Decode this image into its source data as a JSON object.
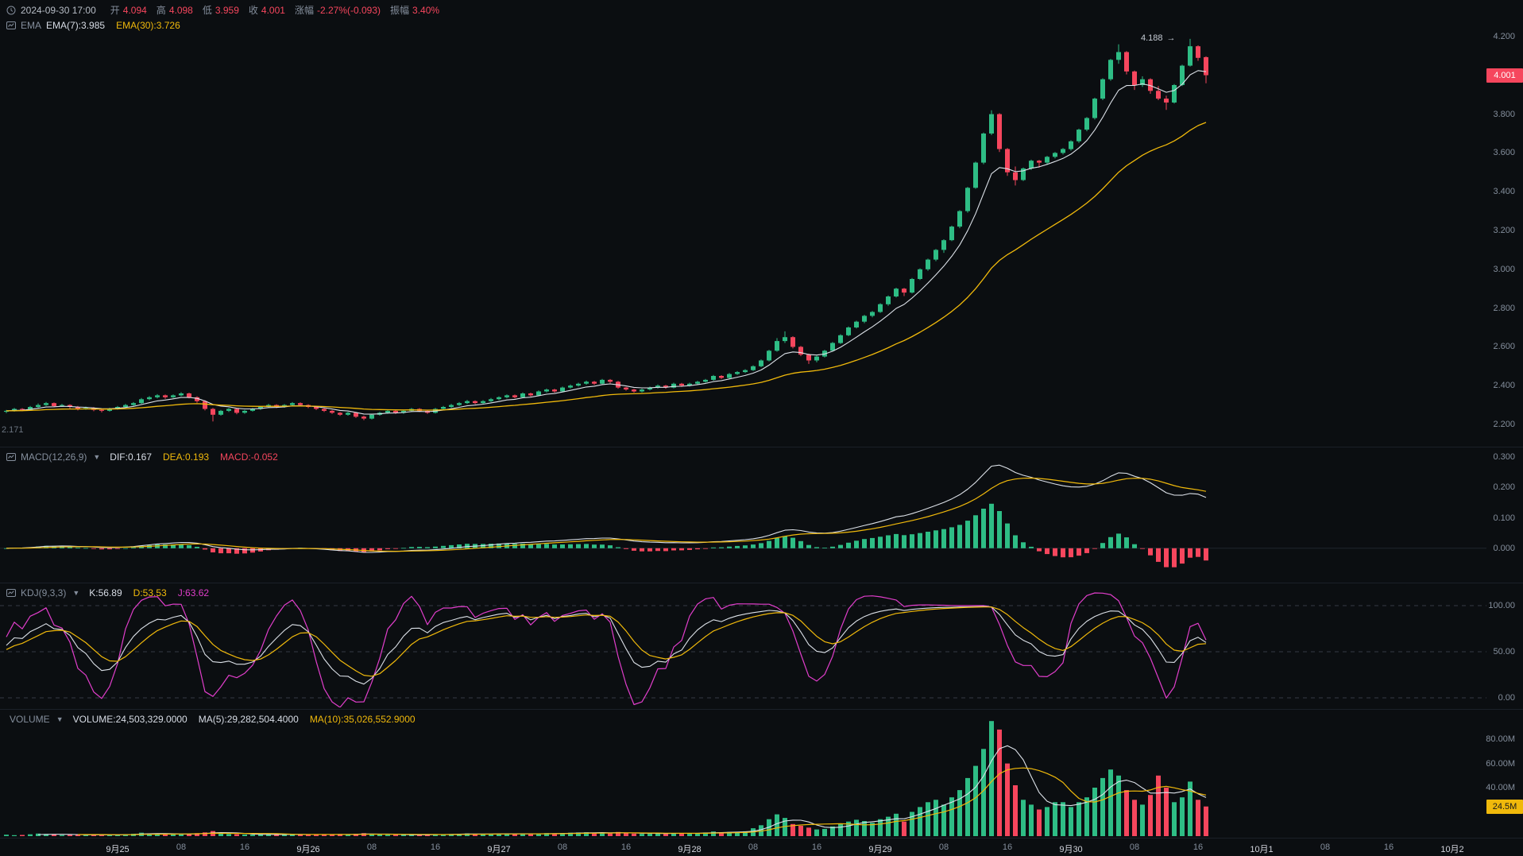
{
  "colors": {
    "up": "#2ebd85",
    "down": "#f6465d",
    "yellow": "#f0b90b",
    "white_line": "#dce1e8",
    "magenta": "#e13ecb",
    "axis_text": "#848e9c",
    "bg": "#0b0e11"
  },
  "header": {
    "datetime": "2024-09-30 17:00",
    "fields": [
      {
        "label": "开",
        "value": "4.094"
      },
      {
        "label": "高",
        "value": "4.098"
      },
      {
        "label": "低",
        "value": "3.959"
      },
      {
        "label": "收",
        "value": "4.001"
      },
      {
        "label": "涨幅",
        "value": "-2.27%(-0.093)"
      },
      {
        "label": "振幅",
        "value": "3.40%"
      }
    ],
    "ema": {
      "name": "EMA",
      "items": [
        {
          "text": "EMA(7):3.985",
          "color": "white"
        },
        {
          "text": "EMA(30):3.726",
          "color": "yellow"
        }
      ]
    }
  },
  "panels": {
    "macd": {
      "title": "MACD(12,26,9)",
      "values": [
        {
          "text": "DIF:0.167",
          "color": "white"
        },
        {
          "text": "DEA:0.193",
          "color": "yellow"
        },
        {
          "text": "MACD:-0.052",
          "color": "red"
        }
      ]
    },
    "kdj": {
      "title": "KDJ(9,3,3)",
      "values": [
        {
          "text": "K:56.89",
          "color": "white"
        },
        {
          "text": "D:53.53",
          "color": "yellow"
        },
        {
          "text": "J:63.62",
          "color": "magenta"
        }
      ]
    },
    "volume": {
      "title": "VOLUME",
      "values": [
        {
          "text": "VOLUME:24,503,329.0000",
          "color": "white"
        },
        {
          "text": "MA(5):29,282,504.4000",
          "color": "white"
        },
        {
          "text": "MA(10):35,026,552.9000",
          "color": "yellow"
        }
      ],
      "badge": "24.5M"
    }
  },
  "chart_data": {
    "type": "candlestick",
    "timeframe_labels_note": "1-hour candles, 2024-09-24 10:00 through 2024-09-30 17:00",
    "price_axis": {
      "ticks": [
        {
          "v": 4.2,
          "label": "4.200"
        },
        {
          "v": 4.0,
          "label": "4.000"
        },
        {
          "v": 3.8,
          "label": "3.800"
        },
        {
          "v": 3.6,
          "label": "3.600"
        },
        {
          "v": 3.4,
          "label": "3.400"
        },
        {
          "v": 3.2,
          "label": "3.200"
        },
        {
          "v": 3.0,
          "label": "3.000"
        },
        {
          "v": 2.8,
          "label": "2.800"
        },
        {
          "v": 2.6,
          "label": "2.600"
        },
        {
          "v": 2.4,
          "label": "2.400"
        },
        {
          "v": 2.2,
          "label": "2.200"
        }
      ],
      "ylim": [
        2.2,
        4.2
      ],
      "last_price": {
        "v": 4.001,
        "label": "4.001"
      },
      "high_annotation": {
        "v": 4.188,
        "label": "4.188",
        "arrow": "→",
        "idx": 149
      },
      "left_label": "2.171"
    },
    "macd_axis": [
      {
        "v": 0.3,
        "label": "0.300"
      },
      {
        "v": 0.2,
        "label": "0.200"
      },
      {
        "v": 0.1,
        "label": "0.100"
      },
      {
        "v": 0.0,
        "label": "0.000"
      }
    ],
    "kdj_axis": [
      {
        "v": 100,
        "label": "100.00"
      },
      {
        "v": 50,
        "label": "50.00"
      },
      {
        "v": 0,
        "label": "0.00"
      }
    ],
    "volume_axis": [
      {
        "v": 80,
        "label": "80.00M"
      },
      {
        "v": 60,
        "label": "60.00M"
      },
      {
        "v": 40,
        "label": "40.00M"
      }
    ],
    "volume_badge": {
      "v": 24.5,
      "label": "24.5M"
    },
    "indicators": {
      "ema": [
        7,
        30
      ],
      "macd": [
        12,
        26,
        9
      ],
      "kdj": [
        9,
        3,
        3
      ],
      "volume_ma": [
        5,
        10
      ]
    },
    "time_axis": [
      {
        "t": "9月25",
        "i": 14,
        "d": true
      },
      {
        "t": "08",
        "i": 22,
        "d": false
      },
      {
        "t": "16",
        "i": 30,
        "d": false
      },
      {
        "t": "9月26",
        "i": 38,
        "d": true
      },
      {
        "t": "08",
        "i": 46,
        "d": false
      },
      {
        "t": "16",
        "i": 54,
        "d": false
      },
      {
        "t": "9月27",
        "i": 62,
        "d": true
      },
      {
        "t": "08",
        "i": 70,
        "d": false
      },
      {
        "t": "16",
        "i": 78,
        "d": false
      },
      {
        "t": "9月28",
        "i": 86,
        "d": true
      },
      {
        "t": "08",
        "i": 94,
        "d": false
      },
      {
        "t": "16",
        "i": 102,
        "d": false
      },
      {
        "t": "9月29",
        "i": 110,
        "d": true
      },
      {
        "t": "08",
        "i": 118,
        "d": false
      },
      {
        "t": "16",
        "i": 126,
        "d": false
      },
      {
        "t": "9月30",
        "i": 134,
        "d": true
      },
      {
        "t": "08",
        "i": 142,
        "d": false
      },
      {
        "t": "16",
        "i": 150,
        "d": false
      },
      {
        "t": "10月1",
        "i": 158,
        "d": true
      },
      {
        "t": "08",
        "i": 166,
        "d": false
      },
      {
        "t": "16",
        "i": 174,
        "d": false
      },
      {
        "t": "10月2",
        "i": 182,
        "d": true
      }
    ],
    "candles": [
      [
        2.265,
        2.275,
        2.258,
        2.27
      ],
      [
        2.27,
        2.285,
        2.266,
        2.28
      ],
      [
        2.28,
        2.284,
        2.268,
        2.275
      ],
      [
        2.275,
        2.295,
        2.272,
        2.29
      ],
      [
        2.29,
        2.308,
        2.286,
        2.3
      ],
      [
        2.3,
        2.316,
        2.295,
        2.31
      ],
      [
        2.31,
        2.313,
        2.288,
        2.295
      ],
      [
        2.295,
        2.306,
        2.29,
        2.3
      ],
      [
        2.3,
        2.304,
        2.282,
        2.29
      ],
      [
        2.29,
        2.295,
        2.272,
        2.28
      ],
      [
        2.28,
        2.292,
        2.276,
        2.285
      ],
      [
        2.285,
        2.289,
        2.268,
        2.275
      ],
      [
        2.275,
        2.28,
        2.262,
        2.27
      ],
      [
        2.27,
        2.286,
        2.266,
        2.28
      ],
      [
        2.28,
        2.295,
        2.276,
        2.29
      ],
      [
        2.29,
        2.306,
        2.286,
        2.3
      ],
      [
        2.3,
        2.315,
        2.295,
        2.31
      ],
      [
        2.31,
        2.336,
        2.306,
        2.33
      ],
      [
        2.33,
        2.346,
        2.325,
        2.34
      ],
      [
        2.34,
        2.356,
        2.334,
        2.35
      ],
      [
        2.35,
        2.354,
        2.332,
        2.34
      ],
      [
        2.34,
        2.355,
        2.336,
        2.35
      ],
      [
        2.35,
        2.366,
        2.345,
        2.36
      ],
      [
        2.36,
        2.364,
        2.334,
        2.34
      ],
      [
        2.34,
        2.345,
        2.312,
        2.32
      ],
      [
        2.32,
        2.325,
        2.272,
        2.28
      ],
      [
        2.28,
        2.285,
        2.215,
        2.25
      ],
      [
        2.25,
        2.275,
        2.245,
        2.27
      ],
      [
        2.27,
        2.285,
        2.264,
        2.28
      ],
      [
        2.28,
        2.284,
        2.252,
        2.26
      ],
      [
        2.26,
        2.275,
        2.255,
        2.27
      ],
      [
        2.27,
        2.285,
        2.266,
        2.28
      ],
      [
        2.28,
        2.295,
        2.275,
        2.29
      ],
      [
        2.29,
        2.306,
        2.285,
        2.3
      ],
      [
        2.3,
        2.304,
        2.284,
        2.29
      ],
      [
        2.29,
        2.305,
        2.286,
        2.3
      ],
      [
        2.3,
        2.315,
        2.295,
        2.31
      ],
      [
        2.31,
        2.314,
        2.294,
        2.3
      ],
      [
        2.3,
        2.304,
        2.284,
        2.29
      ],
      [
        2.29,
        2.294,
        2.274,
        2.28
      ],
      [
        2.28,
        2.284,
        2.264,
        2.27
      ],
      [
        2.27,
        2.274,
        2.254,
        2.26
      ],
      [
        2.26,
        2.264,
        2.244,
        2.25
      ],
      [
        2.25,
        2.265,
        2.245,
        2.26
      ],
      [
        2.26,
        2.264,
        2.234,
        2.24
      ],
      [
        2.24,
        2.245,
        2.222,
        2.23
      ],
      [
        2.23,
        2.255,
        2.226,
        2.25
      ],
      [
        2.25,
        2.265,
        2.245,
        2.26
      ],
      [
        2.26,
        2.275,
        2.255,
        2.27
      ],
      [
        2.27,
        2.274,
        2.254,
        2.26
      ],
      [
        2.26,
        2.275,
        2.255,
        2.27
      ],
      [
        2.27,
        2.285,
        2.265,
        2.28
      ],
      [
        2.28,
        2.284,
        2.264,
        2.27
      ],
      [
        2.27,
        2.274,
        2.254,
        2.26
      ],
      [
        2.26,
        2.285,
        2.256,
        2.28
      ],
      [
        2.28,
        2.295,
        2.275,
        2.29
      ],
      [
        2.29,
        2.306,
        2.285,
        2.3
      ],
      [
        2.3,
        2.315,
        2.295,
        2.31
      ],
      [
        2.31,
        2.326,
        2.305,
        2.32
      ],
      [
        2.32,
        2.324,
        2.304,
        2.31
      ],
      [
        2.31,
        2.325,
        2.305,
        2.32
      ],
      [
        2.32,
        2.336,
        2.315,
        2.33
      ],
      [
        2.33,
        2.345,
        2.325,
        2.34
      ],
      [
        2.34,
        2.355,
        2.335,
        2.35
      ],
      [
        2.35,
        2.354,
        2.334,
        2.34
      ],
      [
        2.34,
        2.365,
        2.336,
        2.36
      ],
      [
        2.36,
        2.364,
        2.344,
        2.35
      ],
      [
        2.35,
        2.375,
        2.346,
        2.37
      ],
      [
        2.37,
        2.385,
        2.365,
        2.38
      ],
      [
        2.38,
        2.384,
        2.364,
        2.37
      ],
      [
        2.37,
        2.395,
        2.366,
        2.39
      ],
      [
        2.39,
        2.406,
        2.385,
        2.4
      ],
      [
        2.4,
        2.415,
        2.395,
        2.41
      ],
      [
        2.41,
        2.426,
        2.405,
        2.42
      ],
      [
        2.42,
        2.424,
        2.404,
        2.41
      ],
      [
        2.41,
        2.435,
        2.406,
        2.43
      ],
      [
        2.43,
        2.434,
        2.412,
        2.42
      ],
      [
        2.42,
        2.424,
        2.384,
        2.39
      ],
      [
        2.39,
        2.394,
        2.374,
        2.38
      ],
      [
        2.38,
        2.384,
        2.364,
        2.37
      ],
      [
        2.37,
        2.385,
        2.365,
        2.38
      ],
      [
        2.38,
        2.395,
        2.375,
        2.39
      ],
      [
        2.39,
        2.406,
        2.385,
        2.4
      ],
      [
        2.4,
        2.404,
        2.384,
        2.39
      ],
      [
        2.39,
        2.415,
        2.386,
        2.41
      ],
      [
        2.41,
        2.414,
        2.394,
        2.4
      ],
      [
        2.4,
        2.415,
        2.395,
        2.41
      ],
      [
        2.41,
        2.425,
        2.405,
        2.42
      ],
      [
        2.42,
        2.435,
        2.415,
        2.43
      ],
      [
        2.43,
        2.455,
        2.426,
        2.45
      ],
      [
        2.45,
        2.454,
        2.434,
        2.44
      ],
      [
        2.44,
        2.465,
        2.436,
        2.46
      ],
      [
        2.46,
        2.475,
        2.455,
        2.47
      ],
      [
        2.47,
        2.485,
        2.465,
        2.48
      ],
      [
        2.48,
        2.505,
        2.476,
        2.5
      ],
      [
        2.5,
        2.535,
        2.495,
        2.53
      ],
      [
        2.53,
        2.585,
        2.525,
        2.58
      ],
      [
        2.58,
        2.645,
        2.575,
        2.63
      ],
      [
        2.63,
        2.68,
        2.62,
        2.65
      ],
      [
        2.65,
        2.655,
        2.592,
        2.6
      ],
      [
        2.6,
        2.605,
        2.552,
        2.56
      ],
      [
        2.56,
        2.565,
        2.512,
        2.53
      ],
      [
        2.53,
        2.555,
        2.52,
        2.55
      ],
      [
        2.55,
        2.585,
        2.545,
        2.58
      ],
      [
        2.58,
        2.625,
        2.575,
        2.62
      ],
      [
        2.62,
        2.665,
        2.615,
        2.66
      ],
      [
        2.66,
        2.705,
        2.655,
        2.7
      ],
      [
        2.7,
        2.735,
        2.695,
        2.73
      ],
      [
        2.73,
        2.765,
        2.722,
        2.76
      ],
      [
        2.76,
        2.785,
        2.752,
        2.78
      ],
      [
        2.78,
        2.825,
        2.775,
        2.82
      ],
      [
        2.82,
        2.865,
        2.812,
        2.86
      ],
      [
        2.86,
        2.905,
        2.855,
        2.9
      ],
      [
        2.9,
        2.904,
        2.862,
        2.88
      ],
      [
        2.88,
        2.955,
        2.875,
        2.95
      ],
      [
        2.95,
        3.005,
        2.945,
        3.0
      ],
      [
        3.0,
        3.055,
        2.992,
        3.05
      ],
      [
        3.05,
        3.105,
        3.042,
        3.1
      ],
      [
        3.1,
        3.155,
        3.085,
        3.15
      ],
      [
        3.15,
        3.225,
        3.145,
        3.22
      ],
      [
        3.22,
        3.305,
        3.212,
        3.3
      ],
      [
        3.3,
        3.425,
        3.292,
        3.42
      ],
      [
        3.42,
        3.555,
        3.415,
        3.55
      ],
      [
        3.55,
        3.705,
        3.542,
        3.7
      ],
      [
        3.7,
        3.82,
        3.692,
        3.8
      ],
      [
        3.8,
        3.805,
        3.605,
        3.62
      ],
      [
        3.62,
        3.625,
        3.482,
        3.5
      ],
      [
        3.5,
        3.53,
        3.432,
        3.46
      ],
      [
        3.46,
        3.525,
        3.455,
        3.52
      ],
      [
        3.52,
        3.565,
        3.512,
        3.56
      ],
      [
        3.56,
        3.564,
        3.524,
        3.55
      ],
      [
        3.55,
        3.585,
        3.542,
        3.58
      ],
      [
        3.58,
        3.605,
        3.572,
        3.6
      ],
      [
        3.6,
        3.625,
        3.592,
        3.62
      ],
      [
        3.62,
        3.665,
        3.612,
        3.66
      ],
      [
        3.66,
        3.725,
        3.652,
        3.72
      ],
      [
        3.72,
        3.785,
        3.712,
        3.78
      ],
      [
        3.78,
        3.885,
        3.772,
        3.88
      ],
      [
        3.88,
        3.985,
        3.872,
        3.98
      ],
      [
        3.98,
        4.085,
        3.972,
        4.08
      ],
      [
        4.08,
        4.16,
        4.06,
        4.12
      ],
      [
        4.12,
        4.125,
        4.005,
        4.02
      ],
      [
        4.02,
        4.025,
        3.925,
        3.95
      ],
      [
        3.95,
        3.995,
        3.94,
        3.98
      ],
      [
        3.98,
        3.985,
        3.905,
        3.92
      ],
      [
        3.92,
        3.945,
        3.872,
        3.88
      ],
      [
        3.88,
        3.895,
        3.822,
        3.86
      ],
      [
        3.86,
        3.955,
        3.855,
        3.95
      ],
      [
        3.95,
        4.055,
        3.945,
        4.05
      ],
      [
        4.05,
        4.188,
        4.045,
        4.15
      ],
      [
        4.15,
        4.155,
        4.075,
        4.09
      ],
      [
        4.094,
        4.098,
        3.959,
        4.001
      ]
    ],
    "volumes": [
      1.2,
      0.8,
      1.0,
      1.5,
      2.1,
      1.8,
      1.3,
      0.9,
      1.1,
      1.4,
      1.0,
      1.2,
      0.8,
      1.1,
      1.3,
      1.6,
      2.0,
      2.8,
      2.2,
      1.9,
      1.5,
      1.4,
      1.8,
      2.0,
      2.4,
      3.1,
      4.2,
      2.6,
      1.8,
      1.6,
      1.3,
      1.2,
      1.5,
      1.7,
      1.3,
      1.2,
      1.6,
      1.4,
      1.2,
      1.1,
      1.3,
      1.5,
      1.8,
      1.2,
      1.9,
      2.4,
      1.7,
      1.4,
      1.2,
      1.1,
      1.0,
      1.2,
      1.1,
      1.3,
      1.6,
      1.4,
      1.7,
      1.9,
      2.2,
      1.6,
      1.5,
      1.8,
      2.0,
      2.2,
      1.7,
      2.1,
      1.6,
      2.3,
      2.5,
      1.9,
      2.4,
      2.8,
      3.0,
      3.2,
      2.4,
      2.9,
      2.2,
      3.4,
      2.6,
      2.1,
      1.9,
      2.2,
      2.5,
      2.0,
      2.6,
      2.1,
      2.4,
      2.6,
      3.0,
      3.8,
      2.8,
      3.4,
      3.6,
      4.0,
      6.5,
      9.0,
      14.0,
      18.0,
      15.0,
      10.0,
      8.5,
      7.0,
      5.5,
      6.0,
      8.0,
      10.5,
      12.0,
      13.5,
      12.5,
      11.0,
      14.0,
      16.0,
      18.5,
      12.0,
      20.0,
      24.0,
      28.0,
      30.0,
      26.0,
      32.0,
      38.0,
      48.0,
      58.0,
      72.0,
      95.0,
      88.0,
      60.0,
      42.0,
      30.0,
      26.0,
      22.0,
      24.0,
      28.0,
      28.0,
      24.0,
      28.0,
      32.0,
      40.0,
      48.0,
      55.0,
      50.0,
      38.0,
      30.0,
      26.0,
      34.0,
      50.0,
      40.0,
      28.0,
      32.0,
      45.0,
      30.0,
      24.5
    ]
  }
}
